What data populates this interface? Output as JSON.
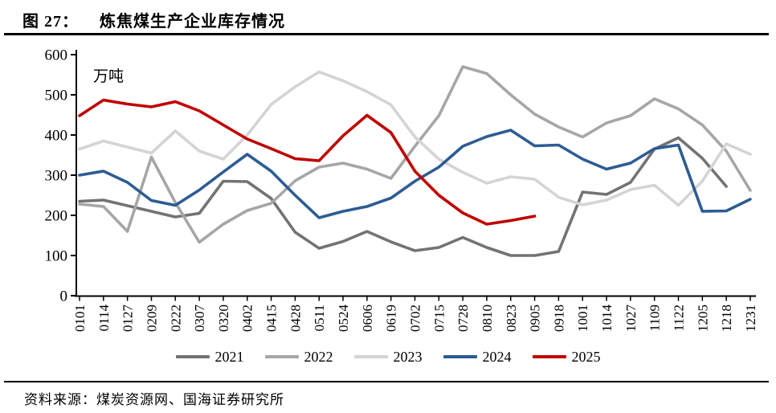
{
  "figure": {
    "label": "图 27：",
    "title": "炼焦煤生产企业库存情况"
  },
  "source": {
    "text": "资料来源：煤炭资源网、国海证券研究所"
  },
  "chart_data": {
    "type": "line",
    "title": "炼焦煤生产企业库存情况",
    "unit_label": "万吨",
    "xlabel": "",
    "ylabel": "万吨",
    "ylim": [
      0,
      600
    ],
    "ytick_step": 100,
    "grid": false,
    "legend_position": "bottom",
    "categories": [
      "0101",
      "0114",
      "0127",
      "0209",
      "0222",
      "0307",
      "0320",
      "0402",
      "0415",
      "0428",
      "0511",
      "0524",
      "0606",
      "0619",
      "0702",
      "0715",
      "0728",
      "0810",
      "0823",
      "0905",
      "0918",
      "1001",
      "1014",
      "1027",
      "1109",
      "1122",
      "1205",
      "1218",
      "1231"
    ],
    "series": [
      {
        "name": "2021",
        "color": "#737373",
        "values": [
          235,
          238,
          224,
          210,
          196,
          205,
          285,
          284,
          242,
          158,
          118,
          135,
          160,
          134,
          112,
          120,
          145,
          120,
          100,
          100,
          110,
          258,
          252,
          282,
          365,
          393,
          342,
          272,
          null
        ]
      },
      {
        "name": "2022",
        "color": "#a6a6a6",
        "values": [
          228,
          222,
          160,
          345,
          232,
          133,
          178,
          212,
          230,
          286,
          320,
          330,
          315,
          292,
          372,
          448,
          570,
          553,
          500,
          452,
          420,
          395,
          430,
          448,
          490,
          465,
          425,
          360,
          262
        ]
      },
      {
        "name": "2023",
        "color": "#d4d4d4",
        "values": [
          365,
          385,
          370,
          355,
          410,
          360,
          340,
          400,
          476,
          520,
          557,
          535,
          508,
          475,
          395,
          340,
          307,
          280,
          296,
          290,
          245,
          226,
          238,
          264,
          275,
          225,
          285,
          378,
          352
        ]
      },
      {
        "name": "2024",
        "color": "#2d5c93",
        "values": [
          300,
          310,
          282,
          237,
          225,
          263,
          308,
          352,
          310,
          250,
          194,
          210,
          222,
          243,
          285,
          320,
          372,
          396,
          412,
          373,
          375,
          340,
          315,
          330,
          366,
          375,
          210,
          211,
          240
        ]
      },
      {
        "name": "2025",
        "color": "#c00000",
        "values": [
          448,
          487,
          477,
          470,
          483,
          460,
          425,
          390,
          366,
          341,
          336,
          398,
          449,
          406,
          310,
          250,
          206,
          178,
          187,
          198,
          null,
          null,
          null,
          null,
          null,
          null,
          null,
          null,
          null
        ]
      }
    ]
  }
}
